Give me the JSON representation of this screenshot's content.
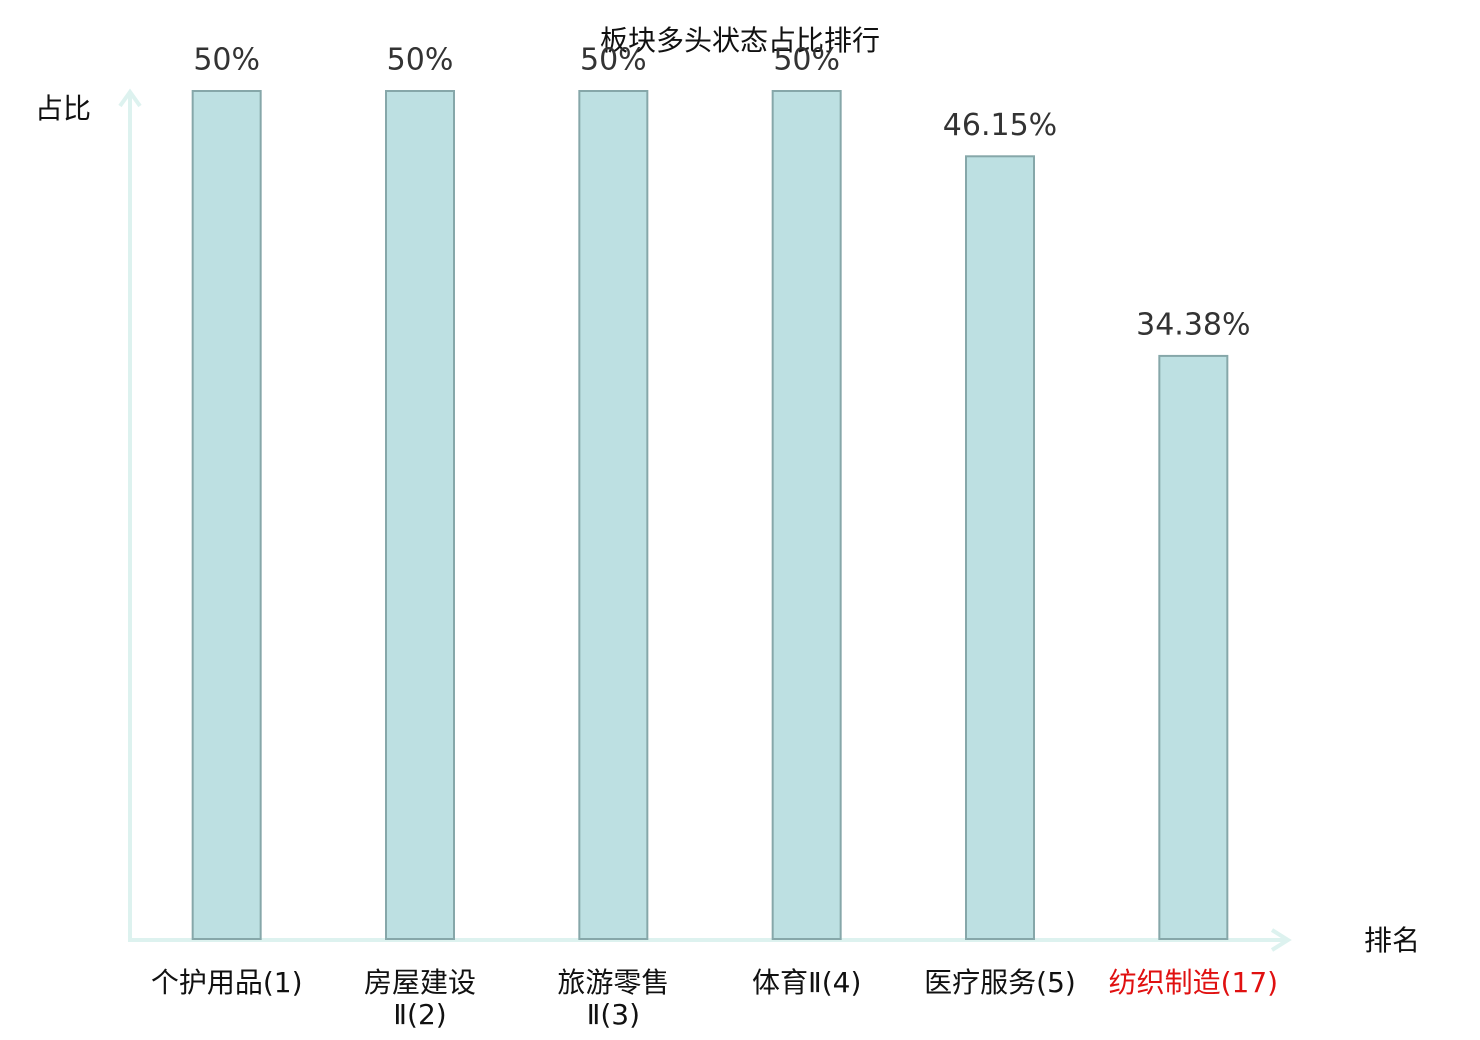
{
  "chart_data": {
    "type": "bar",
    "title": "板块多头状态占比排行",
    "y_label": "占比",
    "x_label": "排名",
    "categories": [
      "个护用品(1)",
      "房屋建设Ⅱ(2)",
      "旅游零售Ⅱ(3)",
      "体育Ⅱ(4)",
      "医疗服务(5)",
      "纺织制造(17)"
    ],
    "values": [
      50,
      50,
      50,
      50,
      46.15,
      34.38
    ],
    "value_labels": [
      "50%",
      "50%",
      "50%",
      "50%",
      "46.15%",
      "34.38%"
    ],
    "label_colors": [
      "#111111",
      "#111111",
      "#111111",
      "#111111",
      "#111111",
      "#e01010"
    ],
    "color": "#bde0e2",
    "edge_color": "#86a7a9",
    "ylim": [
      0,
      50
    ]
  }
}
